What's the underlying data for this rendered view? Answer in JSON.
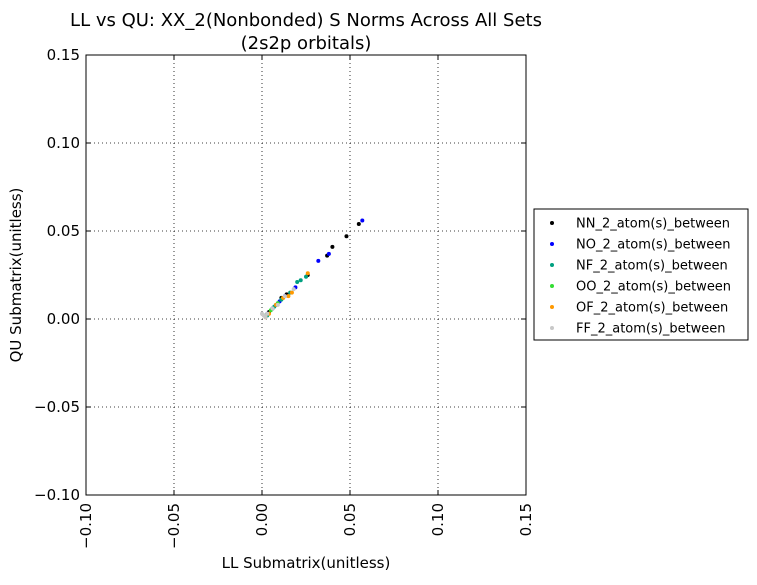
{
  "chart_data": {
    "type": "scatter",
    "title": "LL vs QU: XX_2(Nonbonded) S Norms Across All Sets",
    "subtitle": "(2s2p orbitals)",
    "xlabel": "LL Submatrix(unitless)",
    "ylabel": "QU Submatrix(unitless)",
    "xlim": [
      -0.1,
      0.15
    ],
    "ylim": [
      -0.1,
      0.15
    ],
    "xticks": [
      -0.1,
      -0.05,
      0.0,
      0.05,
      0.1,
      0.15
    ],
    "yticks": [
      -0.1,
      -0.05,
      0.0,
      0.05,
      0.1,
      0.15
    ],
    "xtick_labels": [
      "−0.10",
      "−0.05",
      "0.00",
      "0.05",
      "0.10",
      "0.15"
    ],
    "ytick_labels": [
      "−0.10",
      "−0.05",
      "0.00",
      "0.05",
      "0.10",
      "0.15"
    ],
    "grid": true,
    "legend_position": "right-outside",
    "series": [
      {
        "name": "NN_2_atom(s)_between",
        "color": "#000000",
        "points": [
          [
            0.002,
            0.002
          ],
          [
            0.004,
            0.004
          ],
          [
            0.006,
            0.006
          ],
          [
            0.008,
            0.008
          ],
          [
            0.011,
            0.012
          ],
          [
            0.014,
            0.014
          ],
          [
            0.026,
            0.025
          ],
          [
            0.037,
            0.036
          ],
          [
            0.04,
            0.041
          ],
          [
            0.048,
            0.047
          ],
          [
            0.055,
            0.054
          ]
        ]
      },
      {
        "name": "NO_2_atom(s)_between",
        "color": "#0000ff",
        "points": [
          [
            0.003,
            0.003
          ],
          [
            0.006,
            0.006
          ],
          [
            0.01,
            0.01
          ],
          [
            0.013,
            0.013
          ],
          [
            0.019,
            0.018
          ],
          [
            0.032,
            0.033
          ],
          [
            0.038,
            0.037
          ],
          [
            0.057,
            0.056
          ]
        ]
      },
      {
        "name": "NF_2_atom(s)_between",
        "color": "#00a080",
        "points": [
          [
            0.003,
            0.002
          ],
          [
            0.007,
            0.007
          ],
          [
            0.011,
            0.011
          ],
          [
            0.016,
            0.015
          ],
          [
            0.02,
            0.021
          ],
          [
            0.022,
            0.022
          ],
          [
            0.025,
            0.024
          ]
        ]
      },
      {
        "name": "OO_2_atom(s)_between",
        "color": "#33dd33",
        "points": [
          [
            0.002,
            0.002
          ],
          [
            0.005,
            0.005
          ],
          [
            0.009,
            0.009
          ],
          [
            0.012,
            0.012
          ]
        ]
      },
      {
        "name": "OF_2_atom(s)_between",
        "color": "#ff9900",
        "points": [
          [
            0.002,
            0.001
          ],
          [
            0.004,
            0.003
          ],
          [
            0.008,
            0.008
          ],
          [
            0.012,
            0.012
          ],
          [
            0.015,
            0.013
          ],
          [
            0.017,
            0.015
          ],
          [
            0.026,
            0.026
          ]
        ]
      },
      {
        "name": "FF_2_atom(s)_between",
        "color": "#c8c8c8",
        "points": [
          [
            0.0,
            0.003
          ],
          [
            0.001,
            0.002
          ],
          [
            0.002,
            0.001
          ],
          [
            0.003,
            0.003
          ],
          [
            0.006,
            0.006
          ],
          [
            0.009,
            0.008
          ],
          [
            0.013,
            0.013
          ],
          [
            0.018,
            0.017
          ]
        ]
      }
    ]
  }
}
